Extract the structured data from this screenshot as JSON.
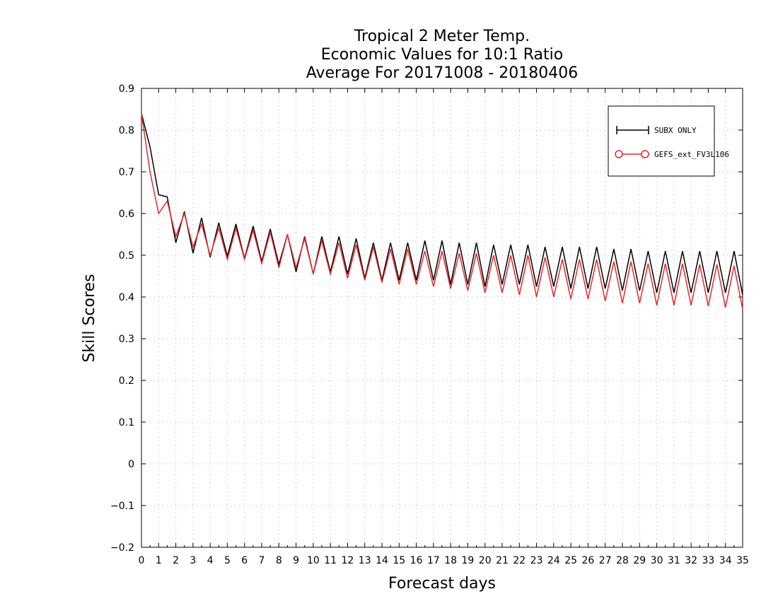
{
  "chart_data": {
    "type": "line",
    "title_lines": [
      "Tropical 2 Meter Temp.",
      "Economic Values for 10:1 Ratio",
      "Average For 20171008 - 20180406"
    ],
    "xlabel": "Forecast days",
    "ylabel": "Skill Scores",
    "xlim": [
      0,
      35
    ],
    "ylim": [
      -0.2,
      0.9
    ],
    "x_ticks": [
      0,
      1,
      2,
      3,
      4,
      5,
      6,
      7,
      8,
      9,
      10,
      11,
      12,
      13,
      14,
      15,
      16,
      17,
      18,
      19,
      20,
      21,
      22,
      23,
      24,
      25,
      26,
      27,
      28,
      29,
      30,
      31,
      32,
      33,
      34,
      35
    ],
    "y_ticks": [
      -0.2,
      -0.1,
      0,
      0.1,
      0.2,
      0.3,
      0.4,
      0.5,
      0.6,
      0.7,
      0.8,
      0.9
    ],
    "y_tick_labels": [
      "−0.2",
      "−0.1",
      "0",
      "0.1",
      "0.2",
      "0.3",
      "0.4",
      "0.5",
      "0.6",
      "0.7",
      "0.8",
      "0.9"
    ],
    "grid": true,
    "legend_position": "top-right",
    "series": [
      {
        "name": "SUBX ONLY",
        "color": "#000000",
        "x": [
          0,
          0.5,
          1,
          1.5,
          2,
          2.5,
          3,
          3.5,
          4,
          4.5,
          5,
          5.5,
          6,
          6.5,
          7,
          7.5,
          8,
          8.5,
          9,
          9.5,
          10,
          10.5,
          11,
          11.5,
          12,
          12.5,
          13,
          13.5,
          14,
          14.5,
          15,
          15.5,
          16,
          16.5,
          17,
          17.5,
          18,
          18.5,
          19,
          19.5,
          20,
          20.5,
          21,
          21.5,
          22,
          22.5,
          23,
          23.5,
          24,
          24.5,
          25,
          25.5,
          26,
          26.5,
          27,
          27.5,
          28,
          28.5,
          29,
          29.5,
          30,
          30.5,
          31,
          31.5,
          32,
          32.5,
          33,
          33.5,
          34,
          34.5,
          35
        ],
        "values": [
          0.84,
          0.76,
          0.645,
          0.64,
          0.53,
          0.605,
          0.505,
          0.59,
          0.495,
          0.578,
          0.498,
          0.575,
          0.492,
          0.57,
          0.485,
          0.563,
          0.478,
          0.55,
          0.46,
          0.545,
          0.455,
          0.545,
          0.46,
          0.545,
          0.455,
          0.54,
          0.445,
          0.53,
          0.44,
          0.53,
          0.44,
          0.53,
          0.44,
          0.535,
          0.44,
          0.535,
          0.43,
          0.53,
          0.43,
          0.53,
          0.425,
          0.525,
          0.43,
          0.525,
          0.43,
          0.525,
          0.425,
          0.52,
          0.425,
          0.52,
          0.42,
          0.52,
          0.42,
          0.52,
          0.42,
          0.515,
          0.415,
          0.515,
          0.415,
          0.51,
          0.41,
          0.51,
          0.41,
          0.51,
          0.41,
          0.51,
          0.41,
          0.51,
          0.41,
          0.51,
          0.405
        ]
      },
      {
        "name": "GEFS_ext_FV3L106",
        "color": "#e8282d",
        "x": [
          0,
          0.5,
          1,
          1.5,
          2,
          2.5,
          3,
          3.5,
          4,
          4.5,
          5,
          5.5,
          6,
          6.5,
          7,
          7.5,
          8,
          8.5,
          9,
          9.5,
          10,
          10.5,
          11,
          11.5,
          12,
          12.5,
          13,
          13.5,
          14,
          14.5,
          15,
          15.5,
          16,
          16.5,
          17,
          17.5,
          18,
          18.5,
          19,
          19.5,
          20,
          20.5,
          21,
          21.5,
          22,
          22.5,
          23,
          23.5,
          24,
          24.5,
          25,
          25.5,
          26,
          26.5,
          27,
          27.5,
          28,
          28.5,
          29,
          29.5,
          30,
          30.5,
          31,
          31.5,
          32,
          32.5,
          33,
          33.5,
          34,
          34.5,
          35
        ],
        "values": [
          0.84,
          0.7,
          0.6,
          0.63,
          0.545,
          0.6,
          0.52,
          0.575,
          0.5,
          0.565,
          0.49,
          0.565,
          0.49,
          0.56,
          0.48,
          0.555,
          0.47,
          0.55,
          0.47,
          0.54,
          0.455,
          0.535,
          0.455,
          0.53,
          0.445,
          0.525,
          0.44,
          0.52,
          0.435,
          0.515,
          0.43,
          0.515,
          0.43,
          0.51,
          0.425,
          0.51,
          0.42,
          0.505,
          0.415,
          0.505,
          0.41,
          0.5,
          0.41,
          0.5,
          0.405,
          0.5,
          0.4,
          0.495,
          0.4,
          0.49,
          0.395,
          0.49,
          0.395,
          0.49,
          0.39,
          0.485,
          0.385,
          0.485,
          0.385,
          0.48,
          0.38,
          0.48,
          0.38,
          0.48,
          0.38,
          0.478,
          0.378,
          0.478,
          0.375,
          0.475,
          0.37
        ]
      }
    ]
  }
}
